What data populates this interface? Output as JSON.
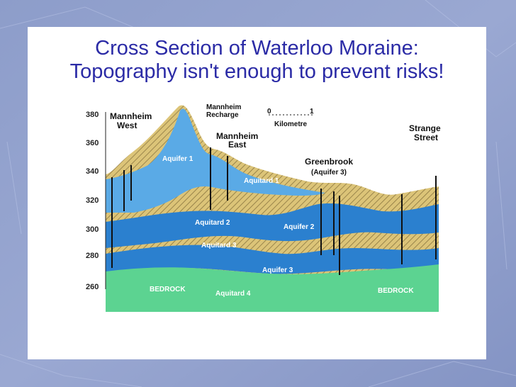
{
  "slide": {
    "title_line1": "Cross Section of Waterloo Moraine:",
    "title_line2": "Topography isn't enough to prevent risks!"
  },
  "diagram": {
    "y_axis": {
      "ticks": [
        "380",
        "360",
        "340",
        "320",
        "300",
        "280",
        "260"
      ]
    },
    "places": {
      "mannheim_west_1": "Mannheim",
      "mannheim_west_2": "West",
      "mannheim_recharge_1": "Mannheim",
      "mannheim_recharge_2": "Recharge",
      "mannheim_east_1": "Mannheim",
      "mannheim_east_2": "East",
      "greenbrook": "Greenbrook",
      "greenbrook_sub": "(Aquifer 3)",
      "strange_1": "Strange",
      "strange_2": "Street"
    },
    "scale": {
      "zero": "0",
      "one": "1",
      "unit": "Kilometre"
    },
    "units": {
      "aquifer1": "Aquifer 1",
      "aquitard1": "Aquitard 1",
      "aquitard2": "Aquitard 2",
      "aquifer2": "Aquifer 2",
      "aquitard3": "Aquitard 3",
      "aquifer3": "Aquifer 3",
      "aquitard4": "Aquitard 4",
      "bedrock_left": "BEDROCK",
      "bedrock_right": "BEDROCK"
    },
    "colors": {
      "aquifer": "#5aaae6",
      "aquifer_deep": "#2b80cf",
      "aquitard": "#dcc478",
      "hatch": "#7a6a3a",
      "bedrock": "#5cd391"
    }
  }
}
